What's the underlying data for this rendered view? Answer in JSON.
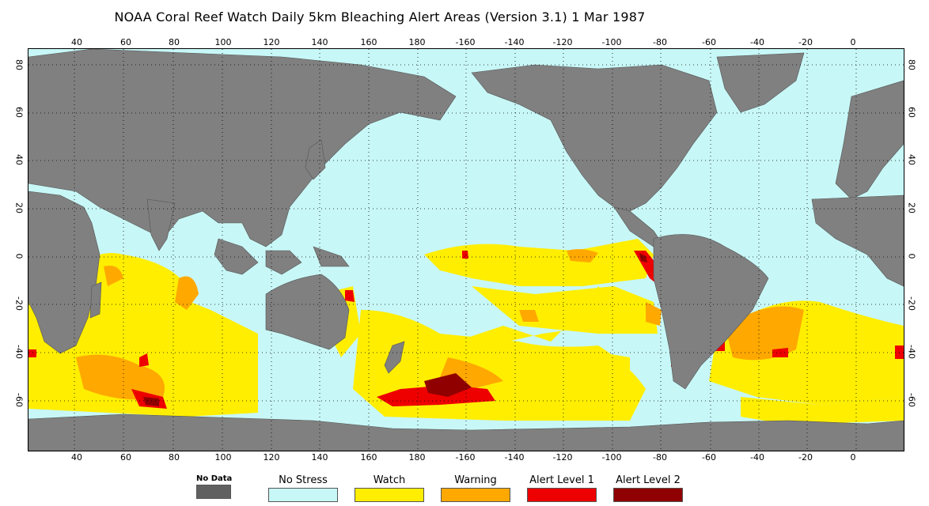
{
  "title": "NOAA Coral Reef Watch Daily 5km Bleaching Alert Areas (Version 3.1)  1 Mar 1987",
  "lon_labels": [
    "40",
    "60",
    "80",
    "100",
    "120",
    "140",
    "160",
    "180",
    "-160",
    "-140",
    "-120",
    "-100",
    "-80",
    "-60",
    "-40",
    "-20",
    "0"
  ],
  "lat_labels": [
    "80",
    "60",
    "40",
    "20",
    "0",
    "-20",
    "-40",
    "-60"
  ],
  "legend": [
    {
      "label": "No Data",
      "color": "#606060"
    },
    {
      "label": "No Stress",
      "color": "#c8f7f7"
    },
    {
      "label": "Watch",
      "color": "#ffee00"
    },
    {
      "label": "Warning",
      "color": "#ffa800"
    },
    {
      "label": "Alert Level 1",
      "color": "#ee0000"
    },
    {
      "label": "Alert Level 2",
      "color": "#900000"
    }
  ],
  "colors": {
    "ocean": "#c8f7f7",
    "land": "#808080",
    "watch": "#ffee00",
    "warning": "#ffa800",
    "alert1": "#ee0000",
    "alert2": "#900000"
  }
}
